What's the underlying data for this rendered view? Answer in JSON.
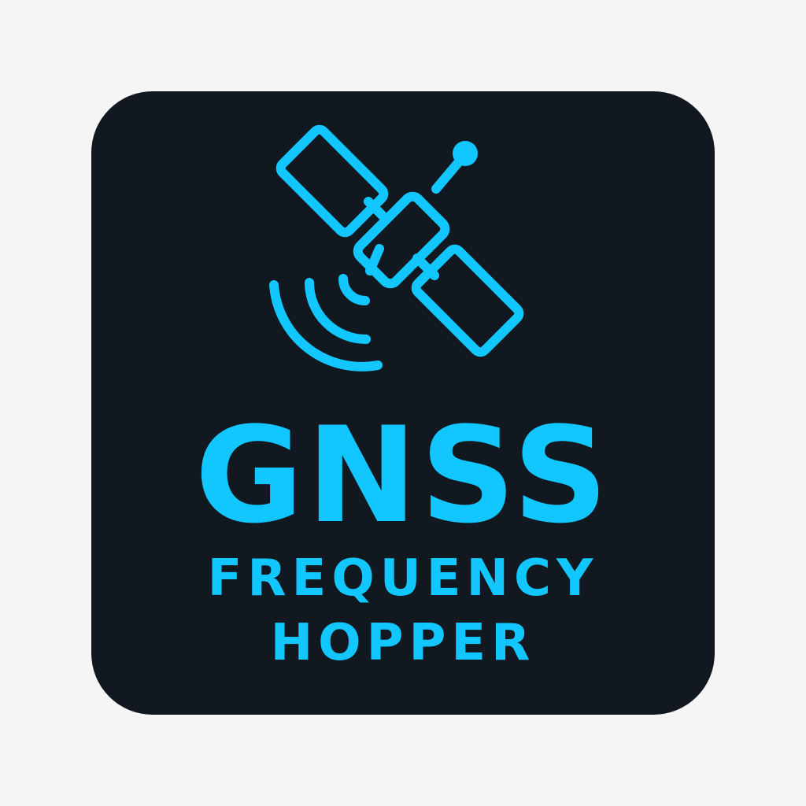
{
  "logo": {
    "title": "GNSS",
    "subtitle_line_1": "FREQUENCY",
    "subtitle_line_2": "HOPPER",
    "icon": "satellite-icon",
    "signal_icon": "signal-waves-icon",
    "colors": {
      "background": "#f5f5f5",
      "tile": "#121820",
      "accent": "#12c7ff"
    }
  }
}
